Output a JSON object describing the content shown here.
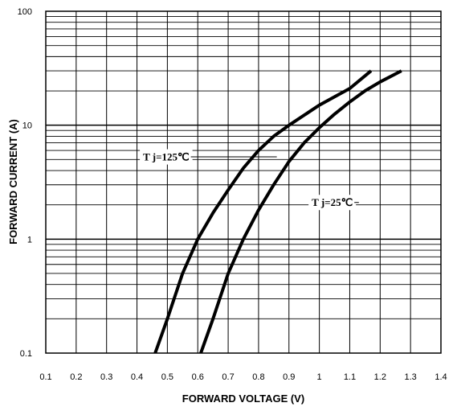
{
  "chart_data": {
    "type": "line",
    "title": "",
    "xlabel": "FORWARD VOLTAGE (V)",
    "ylabel": "FORWARD CURRENT (A)",
    "xlim": [
      0.1,
      1.4
    ],
    "ylim": [
      0.1,
      100
    ],
    "y_scale": "log",
    "grid": true,
    "x_ticks": [
      "0.1",
      "0.2",
      "0.3",
      "0.4",
      "0.5",
      "0.6",
      "0.7",
      "0.8",
      "0.9",
      "1",
      "1.1",
      "1.2",
      "1.3",
      "1.4"
    ],
    "y_ticks": [
      "0.1",
      "1",
      "10",
      "100"
    ],
    "series": [
      {
        "name": "T j=125℃",
        "points": [
          [
            0.46,
            0.1
          ],
          [
            0.5,
            0.2
          ],
          [
            0.55,
            0.5
          ],
          [
            0.6,
            1.0
          ],
          [
            0.65,
            1.7
          ],
          [
            0.7,
            2.7
          ],
          [
            0.75,
            4.2
          ],
          [
            0.8,
            6.0
          ],
          [
            0.85,
            8.0
          ],
          [
            0.9,
            10.0
          ],
          [
            1.0,
            15.0
          ],
          [
            1.1,
            21.0
          ],
          [
            1.17,
            30.0
          ]
        ]
      },
      {
        "name": "T j=25℃",
        "points": [
          [
            0.61,
            0.1
          ],
          [
            0.65,
            0.2
          ],
          [
            0.7,
            0.5
          ],
          [
            0.75,
            1.0
          ],
          [
            0.8,
            1.8
          ],
          [
            0.85,
            3.0
          ],
          [
            0.9,
            4.8
          ],
          [
            0.95,
            7.0
          ],
          [
            1.0,
            9.5
          ],
          [
            1.05,
            12.5
          ],
          [
            1.1,
            16.0
          ],
          [
            1.15,
            20.0
          ],
          [
            1.2,
            24.0
          ],
          [
            1.27,
            30.0
          ]
        ]
      }
    ],
    "annotations": [
      {
        "text": "T j=125℃",
        "series_index": 0
      },
      {
        "text": "T j=25℃",
        "series_index": 1
      }
    ]
  }
}
